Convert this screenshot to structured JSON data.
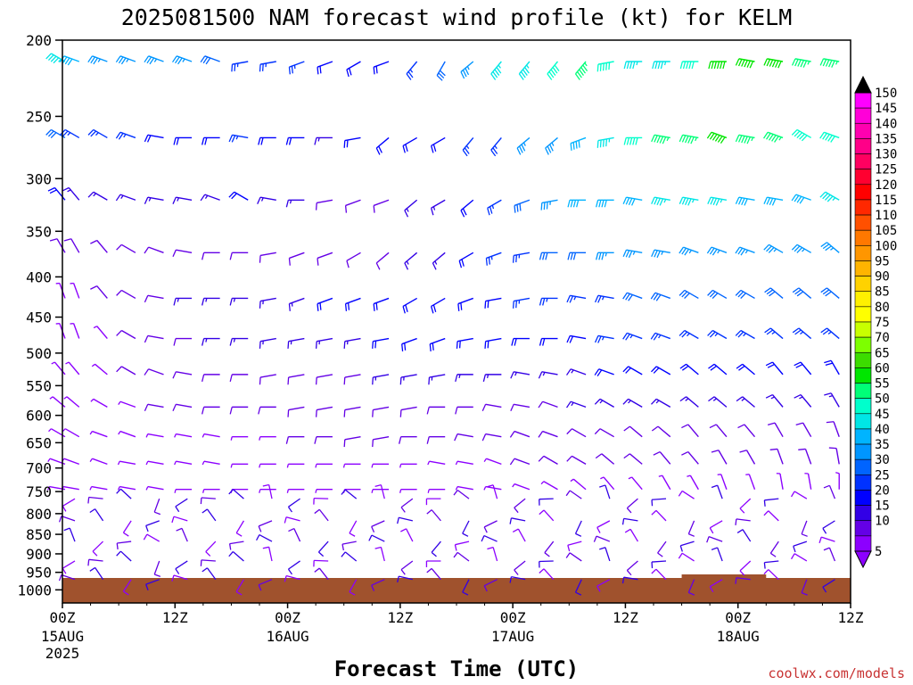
{
  "chart_data": {
    "type": "wind-barb time-height",
    "title": "2025081500 NAM forecast wind profile (kt) for KELM",
    "xlabel": "Forecast Time (UTC)",
    "ylabel": "",
    "credit": "coolwx.com/models",
    "y_axis": {
      "scale": "pressure (hPa), log-like, inverted",
      "range": [
        1000,
        200
      ],
      "ticks": [
        "200",
        "250",
        "300",
        "350",
        "400",
        "450",
        "500",
        "550",
        "600",
        "650",
        "700",
        "750",
        "800",
        "850",
        "900",
        "950",
        "1000"
      ]
    },
    "x_axis": {
      "range_hours": [
        0,
        84
      ],
      "ticks": [
        {
          "hour": 0,
          "label": "00Z",
          "sub": [
            "15AUG",
            "2025"
          ]
        },
        {
          "hour": 12,
          "label": "12Z",
          "sub": []
        },
        {
          "hour": 24,
          "label": "00Z",
          "sub": [
            "16AUG"
          ]
        },
        {
          "hour": 36,
          "label": "12Z",
          "sub": []
        },
        {
          "hour": 48,
          "label": "00Z",
          "sub": [
            "17AUG"
          ]
        },
        {
          "hour": 60,
          "label": "12Z",
          "sub": []
        },
        {
          "hour": 72,
          "label": "00Z",
          "sub": [
            "18AUG"
          ]
        },
        {
          "hour": 84,
          "label": "12Z",
          "sub": []
        }
      ]
    },
    "colorbar": {
      "units": "kt",
      "labels": [
        "150",
        "145",
        "140",
        "135",
        "130",
        "125",
        "120",
        "115",
        "110",
        "105",
        "100",
        "95",
        "90",
        "85",
        "80",
        "75",
        "70",
        "65",
        "60",
        "55",
        "50",
        "45",
        "40",
        "35",
        "30",
        "25",
        "20",
        "15",
        "10",
        "5"
      ],
      "colors": [
        "#ff00ff",
        "#ff00d8",
        "#ff00b0",
        "#ff0088",
        "#ff0060",
        "#ff0030",
        "#ff0000",
        "#ff2800",
        "#ff5000",
        "#ff7800",
        "#ff9600",
        "#ffb400",
        "#ffd200",
        "#fff000",
        "#ffff00",
        "#c8ff00",
        "#7dff00",
        "#3cdc00",
        "#00e600",
        "#00ff78",
        "#00ffcc",
        "#00e6e6",
        "#00b4ff",
        "#0096ff",
        "#0064ff",
        "#0032ff",
        "#0000ff",
        "#3200e6",
        "#6400e6",
        "#8c00ff"
      ]
    },
    "surface_terrain": {
      "color": "#a0522d"
    },
    "wind_barbs": {
      "description": "Wind barbs (direction from, speed kt) at each pressure level and 3-hourly forecast time",
      "levels": [
        "200",
        "250",
        "300",
        "350",
        "400",
        "450",
        "500",
        "550",
        "600",
        "650",
        "700",
        "750",
        "800",
        "850",
        "900",
        "950"
      ],
      "profile": [
        {
          "level": "200",
          "dir": [
            300,
            290,
            290,
            290,
            290,
            290,
            290,
            260,
            260,
            250,
            250,
            240,
            250,
            220,
            210,
            230,
            220,
            220,
            220,
            220,
            260,
            270,
            270,
            270,
            270,
            280,
            280,
            280,
            280,
            280
          ],
          "spd": [
            45,
            40,
            35,
            35,
            35,
            35,
            30,
            25,
            25,
            25,
            20,
            20,
            20,
            25,
            30,
            35,
            45,
            45,
            50,
            55,
            50,
            45,
            45,
            50,
            60,
            60,
            60,
            55,
            55,
            50
          ]
        },
        {
          "level": "250",
          "dir": [
            300,
            300,
            300,
            290,
            280,
            270,
            270,
            280,
            270,
            270,
            270,
            260,
            230,
            240,
            240,
            220,
            220,
            230,
            230,
            250,
            260,
            270,
            280,
            280,
            290,
            280,
            290,
            300,
            290,
            300
          ],
          "spd": [
            30,
            25,
            25,
            25,
            20,
            20,
            20,
            25,
            20,
            20,
            15,
            20,
            20,
            20,
            20,
            25,
            25,
            35,
            35,
            40,
            45,
            50,
            55,
            55,
            60,
            55,
            55,
            50,
            50,
            45
          ],
          "note": "approximate"
        },
        {
          "level": "300",
          "dir": [
            320,
            320,
            300,
            290,
            280,
            280,
            290,
            300,
            280,
            270,
            260,
            250,
            250,
            230,
            240,
            230,
            240,
            250,
            260,
            270,
            270,
            280,
            280,
            280,
            280,
            280,
            280,
            290,
            300,
            310
          ],
          "spd": [
            20,
            15,
            15,
            15,
            15,
            15,
            15,
            20,
            15,
            15,
            10,
            10,
            10,
            15,
            15,
            20,
            25,
            30,
            35,
            40,
            40,
            40,
            45,
            45,
            45,
            40,
            40,
            40,
            45,
            40
          ]
        },
        {
          "level": "350",
          "dir": [
            330,
            330,
            320,
            300,
            290,
            280,
            270,
            270,
            260,
            250,
            250,
            240,
            230,
            230,
            230,
            240,
            250,
            260,
            270,
            270,
            270,
            280,
            280,
            290,
            290,
            290,
            300,
            300,
            310,
            310
          ],
          "spd": [
            10,
            10,
            10,
            10,
            10,
            10,
            10,
            10,
            10,
            10,
            10,
            10,
            10,
            15,
            15,
            20,
            25,
            25,
            30,
            30,
            35,
            35,
            35,
            35,
            35,
            35,
            35,
            35,
            35,
            35
          ]
        },
        {
          "level": "400",
          "dir": [
            340,
            340,
            320,
            300,
            280,
            270,
            270,
            270,
            260,
            250,
            250,
            250,
            250,
            240,
            240,
            250,
            260,
            260,
            270,
            280,
            280,
            290,
            290,
            300,
            300,
            300,
            310,
            310,
            310,
            320
          ],
          "spd": [
            5,
            5,
            10,
            10,
            10,
            15,
            15,
            15,
            15,
            15,
            20,
            20,
            20,
            20,
            20,
            20,
            20,
            25,
            25,
            25,
            25,
            30,
            30,
            30,
            30,
            30,
            30,
            30,
            30,
            30
          ]
        },
        {
          "level": "450",
          "dir": [
            340,
            340,
            320,
            300,
            280,
            270,
            270,
            270,
            260,
            260,
            260,
            260,
            260,
            250,
            250,
            260,
            260,
            270,
            270,
            280,
            280,
            290,
            290,
            300,
            300,
            300,
            310,
            310,
            310,
            320
          ],
          "spd": [
            5,
            5,
            5,
            10,
            10,
            10,
            15,
            15,
            15,
            15,
            15,
            15,
            20,
            20,
            20,
            20,
            20,
            20,
            20,
            20,
            25,
            25,
            25,
            25,
            25,
            25,
            25,
            25,
            25,
            25
          ]
        },
        {
          "level": "500",
          "dir": [
            320,
            320,
            310,
            300,
            290,
            280,
            270,
            270,
            260,
            260,
            260,
            260,
            260,
            260,
            260,
            270,
            270,
            280,
            280,
            290,
            290,
            300,
            300,
            310,
            310,
            310,
            320,
            320,
            330,
            330
          ],
          "spd": [
            5,
            5,
            5,
            10,
            10,
            10,
            10,
            10,
            10,
            10,
            10,
            10,
            15,
            15,
            15,
            15,
            15,
            15,
            15,
            15,
            20,
            20,
            20,
            20,
            20,
            20,
            20,
            20,
            20,
            20
          ]
        },
        {
          "level": "550",
          "dir": [
            310,
            310,
            300,
            290,
            280,
            280,
            270,
            270,
            270,
            260,
            260,
            260,
            260,
            260,
            270,
            270,
            280,
            280,
            290,
            290,
            300,
            300,
            300,
            310,
            310,
            310,
            320,
            320,
            330,
            330
          ],
          "spd": [
            5,
            5,
            5,
            5,
            10,
            10,
            10,
            10,
            10,
            10,
            10,
            10,
            10,
            10,
            10,
            10,
            10,
            10,
            10,
            15,
            15,
            15,
            15,
            15,
            15,
            15,
            15,
            15,
            15,
            15
          ]
        },
        {
          "level": "600",
          "dir": [
            300,
            300,
            290,
            290,
            280,
            280,
            280,
            270,
            270,
            270,
            270,
            260,
            260,
            270,
            270,
            280,
            280,
            290,
            290,
            300,
            300,
            310,
            310,
            320,
            320,
            320,
            330,
            330,
            340,
            340
          ],
          "spd": [
            5,
            5,
            5,
            5,
            5,
            5,
            5,
            5,
            5,
            10,
            10,
            10,
            10,
            10,
            10,
            10,
            10,
            10,
            10,
            10,
            10,
            10,
            10,
            10,
            10,
            10,
            10,
            10,
            10,
            10
          ]
        },
        {
          "level": "650",
          "dir": [
            290,
            290,
            290,
            280,
            280,
            280,
            280,
            270,
            270,
            270,
            270,
            270,
            270,
            270,
            280,
            280,
            290,
            290,
            300,
            300,
            310,
            310,
            320,
            320,
            330,
            330,
            340,
            340,
            350,
            350
          ],
          "spd": [
            5,
            5,
            5,
            5,
            5,
            5,
            5,
            5,
            5,
            5,
            5,
            5,
            5,
            5,
            5,
            5,
            5,
            10,
            10,
            10,
            10,
            10,
            10,
            10,
            10,
            10,
            10,
            10,
            10,
            10
          ]
        },
        {
          "level": "700",
          "dir": [
            280,
            280,
            280,
            280,
            280,
            270,
            270,
            270,
            270,
            270,
            270,
            270,
            270,
            270,
            270,
            280,
            280,
            290,
            300,
            310,
            320,
            320,
            330,
            330,
            340,
            340,
            350,
            350,
            0,
            0
          ],
          "spd": [
            5,
            5,
            5,
            5,
            5,
            5,
            5,
            5,
            5,
            5,
            5,
            5,
            5,
            5,
            5,
            5,
            5,
            5,
            5,
            5,
            5,
            5,
            5,
            5,
            5,
            5,
            5,
            5,
            5,
            5
          ]
        }
      ],
      "note": "Barbs plotted every 3 h; values estimated from barb glyphs, upper-level flow westerly to northwesterly, strengthening to 45-60 kt at 200 hPa after 17AUG."
    }
  }
}
